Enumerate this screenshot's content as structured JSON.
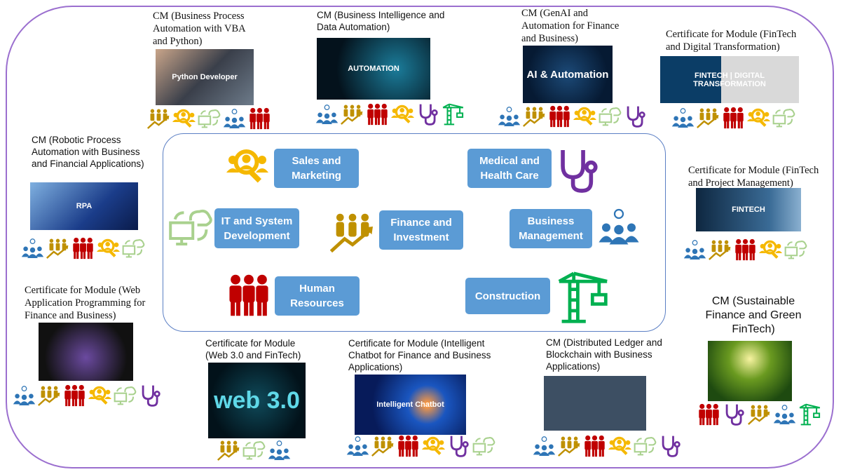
{
  "colors": {
    "outline": "#9b6fcf",
    "sector_box": "#5b9bd5",
    "sales": "#f5b800",
    "medical": "#7030a0",
    "it": "#a9d18e",
    "finance": "#bf9000",
    "business": "#2e75b6",
    "hr": "#c00000",
    "construction": "#00b050"
  },
  "sectors": [
    {
      "id": "sales",
      "label": "Sales and Marketing",
      "icon": "sales-magnifier-icon"
    },
    {
      "id": "medical",
      "label": "Medical and Health Care",
      "icon": "stethoscope-icon"
    },
    {
      "id": "it",
      "label": "IT and System Development",
      "icon": "computer-cloud-sync-icon"
    },
    {
      "id": "finance",
      "label": "Finance and Investment",
      "icon": "people-growth-arrow-icon"
    },
    {
      "id": "business",
      "label": "Business Management",
      "icon": "team-lightbulb-icon"
    },
    {
      "id": "hr",
      "label": "Human Resources",
      "icon": "people-group-icon"
    },
    {
      "id": "construction",
      "label": "Construction",
      "icon": "crane-icon"
    }
  ],
  "courses": [
    {
      "title": "CM (Business Process Automation with VBA and Python)",
      "image_text": "Python Developer",
      "icons": [
        "finance",
        "sales",
        "it",
        "business",
        "hr"
      ]
    },
    {
      "title": "CM (Business Intelligence and Data Automation)",
      "image_text": "AUTOMATION",
      "icons": [
        "business",
        "finance",
        "hr",
        "sales",
        "medical",
        "construction"
      ]
    },
    {
      "title": "CM (GenAI and Automation for Finance and Business)",
      "image_text": "AI & Automation",
      "icons": [
        "business",
        "finance",
        "hr",
        "sales",
        "it",
        "medical"
      ]
    },
    {
      "title": "Certificate for Module (FinTech and Digital Transformation)",
      "image_text": "FINTECH | DIGITAL TRANSFORMATION",
      "icons": [
        "business",
        "finance",
        "hr",
        "sales",
        "it"
      ]
    },
    {
      "title": "CM (Robotic Process Automation with Business and Financial Applications)",
      "image_text": "RPA",
      "icons": [
        "business",
        "finance",
        "hr",
        "sales",
        "it"
      ]
    },
    {
      "title": "Certificate for Module (FinTech and Project Management)",
      "image_text": "FINTECH",
      "icons": [
        "business",
        "finance",
        "hr",
        "sales",
        "it"
      ]
    },
    {
      "title": "Certificate for Module (Web Application Programming for Finance and Business)",
      "image_text": "",
      "icons": [
        "business",
        "finance",
        "hr",
        "sales",
        "it",
        "medical"
      ]
    },
    {
      "title": "Certificate for Module (Web 3.0 and FinTech)",
      "image_text": "web 3.0",
      "icons": [
        "finance",
        "it",
        "business"
      ]
    },
    {
      "title": "Certificate for Module (Intelligent Chatbot for Finance and Business Applications)",
      "image_text": "Intelligent Chatbot",
      "icons": [
        "business",
        "finance",
        "hr",
        "sales",
        "medical",
        "it"
      ]
    },
    {
      "title": "CM (Distributed Ledger and Blockchain with Business Applications)",
      "image_text": "",
      "icons": [
        "business",
        "finance",
        "hr",
        "sales",
        "it",
        "medical"
      ]
    },
    {
      "title": "CM (Sustainable Finance and Green FinTech)",
      "image_text": "",
      "icons": [
        "hr",
        "medical",
        "finance",
        "business",
        "construction"
      ]
    }
  ]
}
